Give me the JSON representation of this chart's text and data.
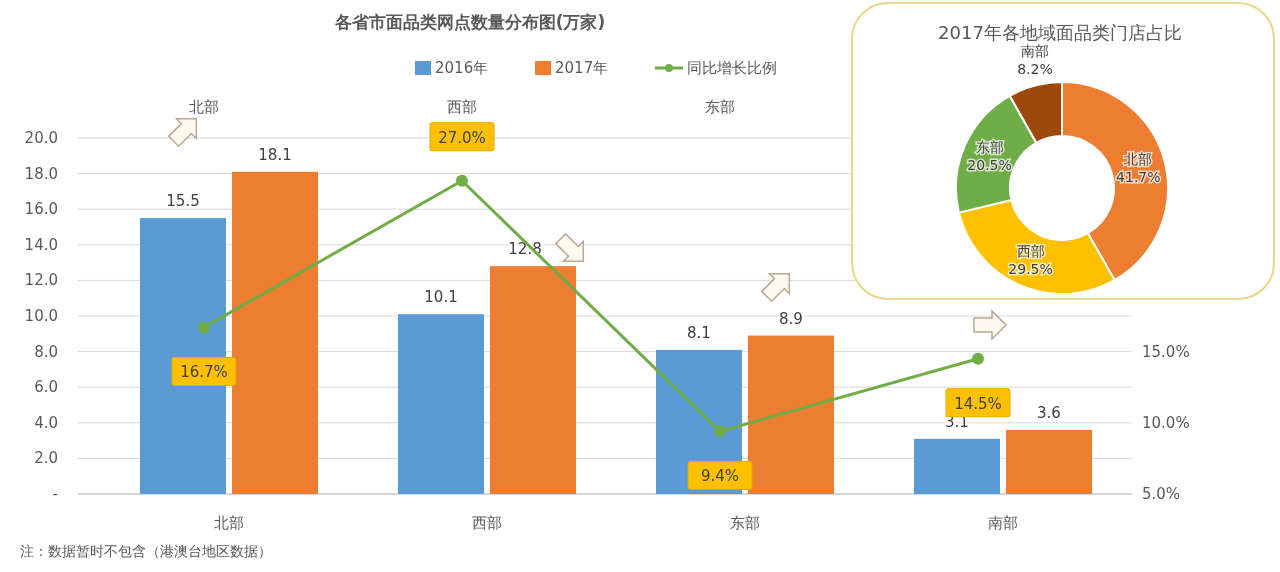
{
  "chart_data": [
    {
      "type": "bar",
      "title": "各省市面品类网点数量分布图(万家)",
      "categories": [
        "北部",
        "西部",
        "东部",
        "南部"
      ],
      "series": [
        {
          "name": "2016年",
          "color": "#5b9bd5",
          "values": [
            15.5,
            10.1,
            8.1,
            3.1
          ],
          "value_labels": [
            "15.5",
            "10.1",
            "8.1",
            "3.1"
          ]
        },
        {
          "name": "2017年",
          "color": "#ed7d31",
          "values": [
            18.1,
            12.8,
            8.9,
            3.6
          ],
          "value_labels": [
            "18.1",
            "12.8",
            "8.9",
            "3.6"
          ]
        },
        {
          "name": "同比增长比例",
          "type": "line",
          "axis": "y2",
          "color": "#70ad47",
          "marker": "circle",
          "values": [
            16.7,
            27.0,
            9.4,
            14.5
          ],
          "value_labels": [
            "16.7%",
            "27.0%",
            "9.4%",
            "14.5%"
          ]
        }
      ],
      "ylim": [
        0,
        20
      ],
      "yticks": [
        {
          "value": 0,
          "label": "-"
        },
        {
          "value": 2,
          "label": "2.0"
        },
        {
          "value": 4,
          "label": "4.0"
        },
        {
          "value": 6,
          "label": "6.0"
        },
        {
          "value": 8,
          "label": "8.0"
        },
        {
          "value": 10,
          "label": "10.0"
        },
        {
          "value": 12,
          "label": "12.0"
        },
        {
          "value": 14,
          "label": "14.0"
        },
        {
          "value": 16,
          "label": "16.0"
        },
        {
          "value": 18,
          "label": "18.0"
        },
        {
          "value": 20,
          "label": "20.0"
        }
      ],
      "y2lim": [
        5,
        30
      ],
      "y2ticks": [
        {
          "value": 5,
          "label": "5.0%"
        },
        {
          "value": 10,
          "label": "10.0%"
        },
        {
          "value": 15,
          "label": "15.0%"
        }
      ],
      "grid": "y",
      "legend": "top",
      "annotations": [
        "北部",
        "西部",
        "东部",
        "注：数据暂时不包含（港澳台地区数据）"
      ]
    },
    {
      "type": "donut",
      "title": "2017年各地域面品类门店占比",
      "categories": [
        "北部",
        "西部",
        "东部",
        "南部"
      ],
      "values": [
        41.7,
        29.5,
        20.5,
        8.2
      ],
      "colors": [
        "#ed7d31",
        "#ffc000",
        "#70ad47",
        "#9e480e"
      ],
      "value_labels": [
        "41.7%",
        "29.5%",
        "20.5%",
        "8.2%"
      ]
    }
  ]
}
